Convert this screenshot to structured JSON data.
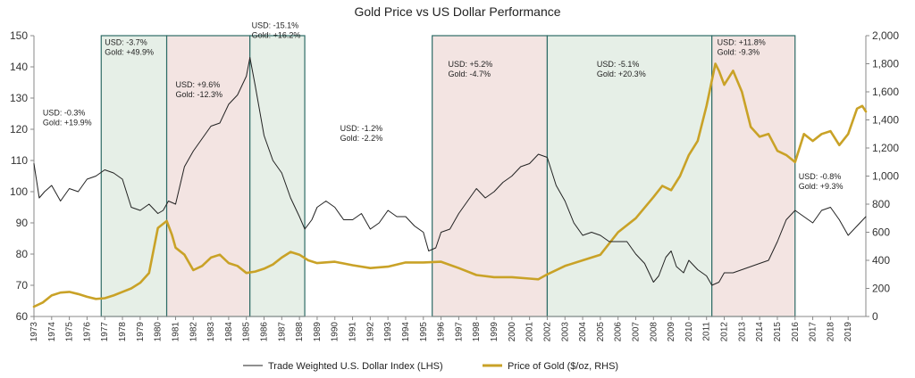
{
  "chart_data": {
    "type": "line",
    "title": "Gold Price vs US Dollar Performance",
    "y_left": {
      "ylim": [
        60,
        150
      ],
      "ticks": [
        "60",
        "70",
        "80",
        "90",
        "100",
        "110",
        "120",
        "130",
        "140",
        "150"
      ]
    },
    "y_right": {
      "ylim": [
        0,
        2000
      ],
      "ticks": [
        "0",
        "200",
        "400",
        "600",
        "800",
        "1,000",
        "1,200",
        "1,400",
        "1,600",
        "1,800",
        "2,000"
      ]
    },
    "x_axis": {
      "range": [
        1973,
        2020
      ],
      "tick_labels": [
        "1973",
        "1974",
        "1975",
        "1976",
        "1977",
        "1978",
        "1979",
        "1980",
        "1981",
        "1982",
        "1983",
        "1984",
        "1985",
        "1986",
        "1987",
        "1988",
        "1989",
        "1990",
        "1991",
        "1992",
        "1993",
        "1994",
        "1995",
        "1996",
        "1997",
        "1998",
        "1999",
        "2000",
        "2001",
        "2002",
        "2003",
        "2004",
        "2005",
        "2006",
        "2007",
        "2008",
        "2009",
        "2010",
        "2011",
        "2012",
        "2013",
        "2014",
        "2015",
        "2016",
        "2017",
        "2018",
        "2019"
      ]
    },
    "regions": [
      {
        "start": 1976.8,
        "end": 1980.5,
        "shade": "green"
      },
      {
        "start": 1980.5,
        "end": 1985.2,
        "shade": "red"
      },
      {
        "start": 1985.2,
        "end": 1988.3,
        "shade": "green"
      },
      {
        "start": 1995.5,
        "end": 2002.0,
        "shade": "red"
      },
      {
        "start": 2002.0,
        "end": 2011.3,
        "shade": "green"
      },
      {
        "start": 2011.3,
        "end": 2016.0,
        "shade": "red"
      }
    ],
    "annotations": [
      {
        "lines": [
          "USD: -0.3%",
          "Gold: +19.9%"
        ],
        "x": 1973.5,
        "y": 124.5
      },
      {
        "lines": [
          "USD: -3.7%",
          "Gold: +49.9%"
        ],
        "x": 1977.0,
        "y": 147.0
      },
      {
        "lines": [
          "USD: +9.6%",
          "Gold: -12.3%"
        ],
        "x": 1981.0,
        "y": 133.5
      },
      {
        "lines": [
          "USD: -15.1%",
          "Gold: +16.2%"
        ],
        "x": 1985.3,
        "y": 152.5
      },
      {
        "lines": [
          "USD: -1.2%",
          "Gold: -2.2%"
        ],
        "x": 1990.3,
        "y": 119.5
      },
      {
        "lines": [
          "USD: +5.2%",
          "Gold: -4.7%"
        ],
        "x": 1996.4,
        "y": 140.0
      },
      {
        "lines": [
          "USD: -5.1%",
          "Gold: +20.3%"
        ],
        "x": 2004.8,
        "y": 140.0
      },
      {
        "lines": [
          "USD: +11.8%",
          "Gold: -9.3%"
        ],
        "x": 2011.6,
        "y": 147.0
      },
      {
        "lines": [
          "USD: -0.8%",
          "Gold: +9.3%"
        ],
        "x": 2016.2,
        "y": 104.0
      }
    ],
    "series": [
      {
        "name": "Trade Weighted U.S. Dollar Index (LHS)",
        "axis": "left",
        "color": "#222222",
        "x": [
          1973.0,
          1973.3,
          1973.6,
          1974.0,
          1974.5,
          1975.0,
          1975.5,
          1976.0,
          1976.5,
          1977.0,
          1977.5,
          1978.0,
          1978.5,
          1979.0,
          1979.5,
          1980.0,
          1980.3,
          1980.6,
          1981.0,
          1981.5,
          1982.0,
          1982.5,
          1983.0,
          1983.5,
          1984.0,
          1984.5,
          1985.0,
          1985.2,
          1985.5,
          1986.0,
          1986.5,
          1987.0,
          1987.5,
          1988.0,
          1988.3,
          1988.7,
          1989.0,
          1989.5,
          1990.0,
          1990.5,
          1991.0,
          1991.5,
          1992.0,
          1992.5,
          1993.0,
          1993.5,
          1994.0,
          1994.5,
          1995.0,
          1995.3,
          1995.7,
          1996.0,
          1996.5,
          1997.0,
          1997.5,
          1998.0,
          1998.5,
          1999.0,
          1999.5,
          2000.0,
          2000.5,
          2001.0,
          2001.5,
          2002.0,
          2002.5,
          2003.0,
          2003.5,
          2004.0,
          2004.5,
          2005.0,
          2005.5,
          2006.0,
          2006.5,
          2007.0,
          2007.5,
          2008.0,
          2008.3,
          2008.7,
          2009.0,
          2009.3,
          2009.7,
          2010.0,
          2010.5,
          2011.0,
          2011.3,
          2011.7,
          2012.0,
          2012.5,
          2013.0,
          2013.5,
          2014.0,
          2014.5,
          2015.0,
          2015.5,
          2016.0,
          2016.5,
          2017.0,
          2017.5,
          2018.0,
          2018.5,
          2019.0,
          2019.5,
          2020.0
        ],
        "values": [
          109,
          98,
          100,
          102,
          97,
          101,
          100,
          104,
          105,
          107,
          106,
          104,
          95,
          94,
          96,
          93,
          94,
          97,
          96,
          108,
          113,
          117,
          121,
          122,
          128,
          131,
          137,
          143,
          134,
          118,
          110,
          106,
          98,
          92,
          88,
          91,
          95,
          97,
          95,
          91,
          91,
          93,
          88,
          90,
          94,
          92,
          92,
          89,
          87,
          81,
          82,
          87,
          88,
          93,
          97,
          101,
          98,
          100,
          103,
          105,
          108,
          109,
          112,
          111,
          102,
          97,
          90,
          86,
          87,
          86,
          84,
          84,
          84,
          80,
          77,
          71,
          73,
          79,
          81,
          76,
          74,
          78,
          75,
          73,
          70,
          71,
          74,
          74,
          75,
          76,
          77,
          78,
          84,
          91,
          94,
          92,
          90,
          94,
          95,
          91,
          86,
          89,
          92
        ]
      },
      {
        "name": "Price of Gold ($/oz, RHS)",
        "axis": "right",
        "color": "#c9a227",
        "x": [
          1973.0,
          1973.5,
          1974.0,
          1974.5,
          1975.0,
          1975.5,
          1976.0,
          1976.5,
          1977.0,
          1977.5,
          1978.0,
          1978.5,
          1979.0,
          1979.5,
          1980.0,
          1980.2,
          1980.5,
          1980.8,
          1981.0,
          1981.5,
          1982.0,
          1982.5,
          1983.0,
          1983.5,
          1984.0,
          1984.5,
          1985.0,
          1985.5,
          1986.0,
          1986.5,
          1987.0,
          1987.5,
          1988.0,
          1988.5,
          1989.0,
          1990.0,
          1991.0,
          1992.0,
          1993.0,
          1994.0,
          1995.0,
          1996.0,
          1997.0,
          1998.0,
          1999.0,
          2000.0,
          2001.0,
          2001.5,
          2002.0,
          2003.0,
          2004.0,
          2005.0,
          2006.0,
          2007.0,
          2008.0,
          2008.5,
          2009.0,
          2009.5,
          2010.0,
          2010.5,
          2011.0,
          2011.5,
          2011.7,
          2012.0,
          2012.5,
          2013.0,
          2013.5,
          2014.0,
          2014.5,
          2015.0,
          2015.5,
          2016.0,
          2016.5,
          2017.0,
          2017.5,
          2018.0,
          2018.5,
          2019.0,
          2019.5,
          2019.8,
          2020.0
        ],
        "values": [
          70,
          100,
          150,
          170,
          175,
          160,
          140,
          125,
          130,
          150,
          175,
          200,
          240,
          310,
          630,
          650,
          680,
          580,
          490,
          440,
          330,
          360,
          420,
          440,
          380,
          360,
          310,
          320,
          340,
          370,
          420,
          460,
          440,
          400,
          380,
          390,
          365,
          345,
          355,
          385,
          385,
          390,
          345,
          295,
          280,
          280,
          270,
          265,
          300,
          360,
          400,
          440,
          600,
          700,
          850,
          930,
          900,
          1000,
          1150,
          1250,
          1500,
          1800,
          1750,
          1650,
          1750,
          1600,
          1350,
          1280,
          1300,
          1180,
          1150,
          1100,
          1300,
          1250,
          1300,
          1320,
          1220,
          1300,
          1480,
          1500,
          1460
        ]
      }
    ]
  },
  "legend": [
    {
      "label": "Trade Weighted U.S. Dollar Index (LHS)",
      "color": "#222222",
      "width": 1
    },
    {
      "label": "Price of Gold ($/oz, RHS)",
      "color": "#c9a227",
      "width": 3
    }
  ],
  "colors": {
    "green_fill": "#e6efe7",
    "red_fill": "#f3e4e2",
    "region_border": "#2e6b66",
    "axis": "#888888",
    "usd_line": "#222222",
    "gold_line": "#c9a227"
  }
}
